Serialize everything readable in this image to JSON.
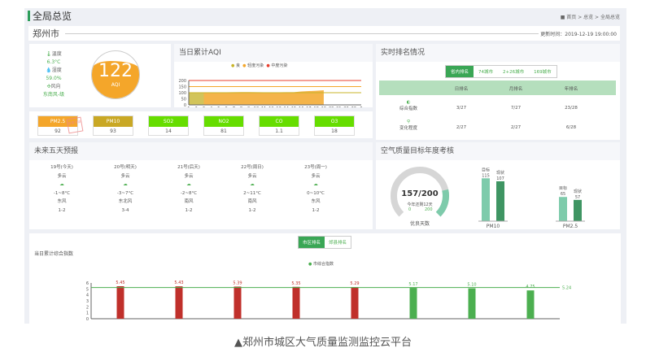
{
  "header": {
    "title": "全局总览",
    "breadcrumb": [
      "首页",
      "总览",
      "全局总览"
    ]
  },
  "city": {
    "name": "郑州市",
    "update_label": "更新时间：2019-12-19 19:00:00"
  },
  "weather": {
    "temp_label": "温度",
    "temp": "6.3°C",
    "humidity_label": "湿度",
    "humidity": "59.0%",
    "wind_label": "风向",
    "wind": "东南风-级"
  },
  "aqi": {
    "value": "122",
    "label": "AQI",
    "color": "#f4a62a"
  },
  "aqi_chart": {
    "title": "当日累计AQI",
    "legend": [
      "良",
      "轻度污染",
      "中度污染"
    ],
    "legend_colors": [
      "#c9b52a",
      "#f4a62a",
      "#e8402f"
    ],
    "chart_data": {
      "type": "area",
      "x": [
        "1",
        "2",
        "3",
        "4",
        "5",
        "6",
        "7",
        "8",
        "9",
        "10",
        "11",
        "12",
        "13",
        "14",
        "15",
        "16",
        "17",
        "18",
        "19",
        "20",
        "21",
        "22",
        "23",
        "0"
      ],
      "values": [
        100,
        100,
        100,
        101,
        102,
        103,
        104,
        105,
        105,
        104,
        103,
        103,
        103,
        104,
        104,
        110,
        113,
        116,
        120,
        null,
        null,
        null,
        null,
        null
      ],
      "yticks": [
        0,
        50,
        100,
        150,
        200
      ],
      "ylim": [
        0,
        200
      ],
      "thresholds": [
        100,
        150,
        200
      ]
    }
  },
  "pollutants": [
    {
      "name": "PM2.5",
      "value": "92",
      "color": "#f4a62a",
      "stamp": "首要污染"
    },
    {
      "name": "PM10",
      "value": "93",
      "color": "#c9a825"
    },
    {
      "name": "SO2",
      "value": "14",
      "color": "#66dd00"
    },
    {
      "name": "NO2",
      "value": "81",
      "color": "#66dd00"
    },
    {
      "name": "CO",
      "value": "1.1",
      "color": "#66dd00"
    },
    {
      "name": "O3",
      "value": "18",
      "color": "#66dd00"
    }
  ],
  "forecast": {
    "title": "未来五天预报",
    "days": [
      {
        "date": "19号(今天)",
        "sky": "多云",
        "temp": "-1~8°C",
        "wind": "东风",
        "level": "1-2"
      },
      {
        "date": "20号(明天)",
        "sky": "多云",
        "temp": "-3~7°C",
        "wind": "东北风",
        "level": "3-4"
      },
      {
        "date": "21号(后天)",
        "sky": "多云",
        "temp": "-2~8°C",
        "wind": "南风",
        "level": "1-2"
      },
      {
        "date": "22号(周日)",
        "sky": "多云",
        "temp": "2~11°C",
        "wind": "南风",
        "level": "1-2"
      },
      {
        "date": "23号(周一)",
        "sky": "多云",
        "temp": "0~10°C",
        "wind": "东风",
        "level": "1-2"
      }
    ]
  },
  "ranking": {
    "title": "实时排名情况",
    "tabs": [
      "省内排名",
      "74城市",
      "2+26城市",
      "169城市"
    ],
    "active_tab": 0,
    "columns": [
      "",
      "日排名",
      "月排名",
      "年排名"
    ],
    "rows": [
      {
        "label": "综合指数",
        "values": [
          "3/27",
          "7/27",
          "23/28"
        ]
      },
      {
        "label": "变化程度",
        "values": [
          "2/27",
          "2/27",
          "6/28"
        ]
      }
    ]
  },
  "target": {
    "title": "空气质量目标年度考核",
    "gauge": {
      "value": 157,
      "max": 200,
      "text": "157/200",
      "sub": "今年还剩12天",
      "min_label": "0",
      "max_label": "200",
      "caption": "优良天数"
    },
    "chart_data": {
      "type": "bar",
      "groups": [
        {
          "name": "PM10",
          "values": [
            {
              "label": "目标",
              "value": 115
            },
            {
              "label": "现状",
              "value": 107
            }
          ]
        },
        {
          "name": "PM2.5",
          "values": [
            {
              "label": "目标",
              "value": 65
            },
            {
              "label": "现状",
              "value": 57
            }
          ]
        }
      ],
      "colors": [
        "#7ecbab",
        "#3f9563"
      ]
    }
  },
  "composite": {
    "tabs": [
      "市区排名",
      "郊县排名"
    ],
    "active_tab": 0,
    "title": "当日累计综合指数",
    "legend": "市综合指数",
    "chart_data": {
      "type": "bar",
      "values": [
        5.45,
        5.43,
        5.39,
        5.35,
        5.29,
        5.17,
        5.1,
        4.75
      ],
      "colors": [
        "#c0302b",
        "#c0302b",
        "#c0302b",
        "#c0302b",
        "#c0302b",
        "#4caf50",
        "#4caf50",
        "#4caf50"
      ],
      "average": 5.24,
      "yticks": [
        0,
        1,
        2,
        3,
        4,
        5,
        6
      ],
      "ylim": [
        0,
        6
      ]
    }
  },
  "caption": "▲郑州市城区大气质量监测监控云平台"
}
